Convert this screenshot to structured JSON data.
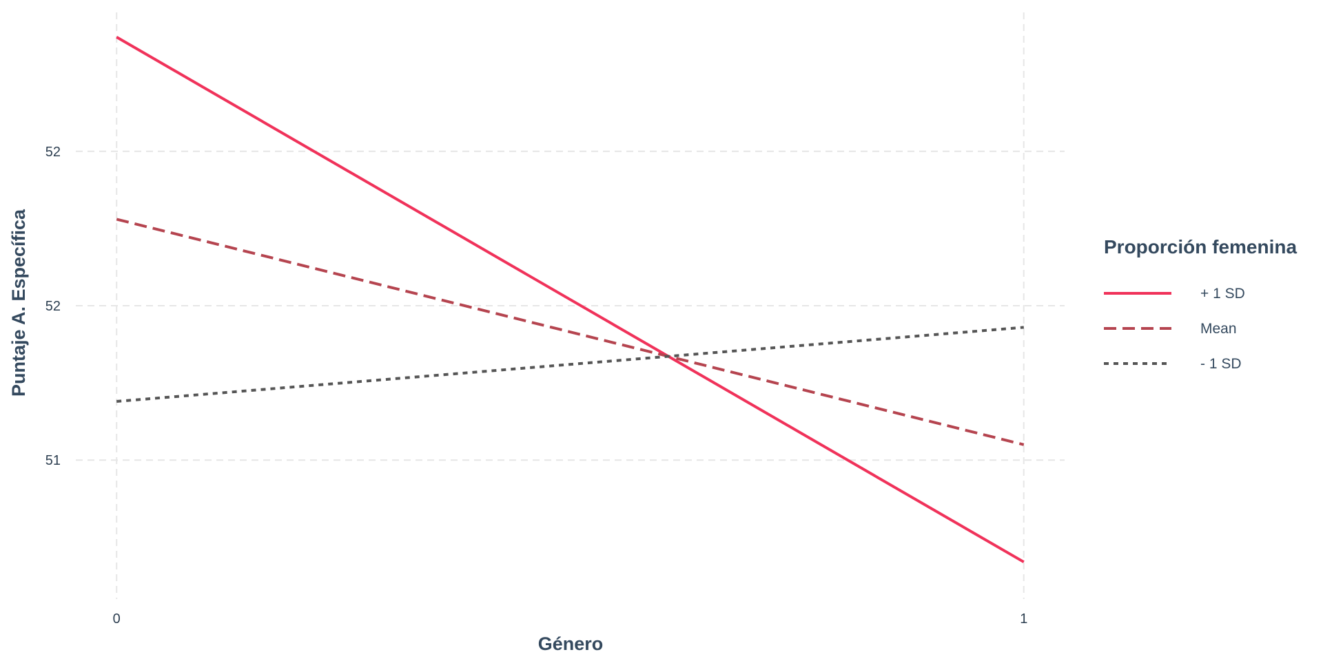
{
  "chart_data": {
    "type": "line",
    "xlabel": "Género",
    "ylabel": "Puntaje A. Específica",
    "x": [
      0,
      1
    ],
    "x_ticks": [
      {
        "value": 0,
        "label": "0"
      },
      {
        "value": 1,
        "label": "1"
      }
    ],
    "y_ticks": [
      {
        "value": 51.0,
        "label": "51"
      },
      {
        "value": 51.5,
        "label": "52"
      },
      {
        "value": 52.0,
        "label": "52"
      }
    ],
    "xlim": [
      -0.045,
      1.045
    ],
    "ylim": [
      50.55,
      52.45
    ],
    "grid": true,
    "legend": {
      "title": "Proporción femenina",
      "placement": "right"
    },
    "series": [
      {
        "name": "+ 1 SD",
        "values": [
          52.37,
          50.67
        ],
        "color": "#f0325a",
        "dash": "solid"
      },
      {
        "name": "Mean",
        "values": [
          51.78,
          51.05
        ],
        "color": "#b5444f",
        "dash": "dashed"
      },
      {
        "name": "- 1 SD",
        "values": [
          51.19,
          51.43
        ],
        "color": "#555555",
        "dash": "dotted"
      }
    ]
  }
}
